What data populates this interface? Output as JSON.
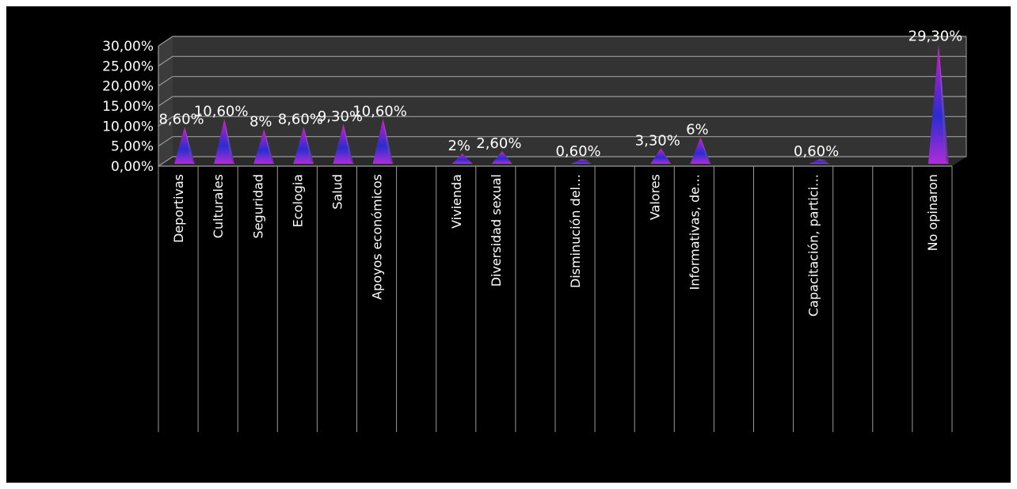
{
  "chart_data": {
    "type": "bar",
    "style": "3d-pyramid",
    "grid": true,
    "legend": "none",
    "ylim": [
      0,
      30
    ],
    "y_ticks": [
      "0,00%",
      "5,00%",
      "10,00%",
      "15,00%",
      "20,00%",
      "25,00%",
      "30,00%"
    ],
    "categories": [
      "Deportivas",
      "Culturales",
      "Seguridad",
      "Ecologia",
      "Salud",
      "Apoyos económicos",
      "",
      "Vivienda",
      "Diversidad sexual",
      "",
      "Disminución del…",
      "",
      "Valores",
      "Informativas, de…",
      "",
      "",
      "Capacitación, partici…",
      "",
      "",
      "No opinaron"
    ],
    "values": [
      8.6,
      10.6,
      8,
      8.6,
      9.3,
      10.6,
      0,
      2,
      2.6,
      0,
      0.6,
      0,
      3.3,
      6,
      0,
      0,
      0.6,
      0,
      0,
      29.3
    ],
    "data_labels": [
      "8,60%",
      "10,60%",
      "8%",
      "8,60%",
      "9,30%",
      "10,60%",
      "",
      "2%",
      "2,60%",
      "",
      "0,60%",
      "",
      "3,30%",
      "6%",
      "",
      "",
      "0,60%",
      "",
      "",
      "29,30%"
    ],
    "colors": {
      "background": "#000000",
      "grid": "#9a9a9a",
      "wall": "#333333",
      "bar_top": "#d01cc8",
      "bar_mid": "#2a2cd0",
      "bar_base": "#b02cd8"
    }
  }
}
